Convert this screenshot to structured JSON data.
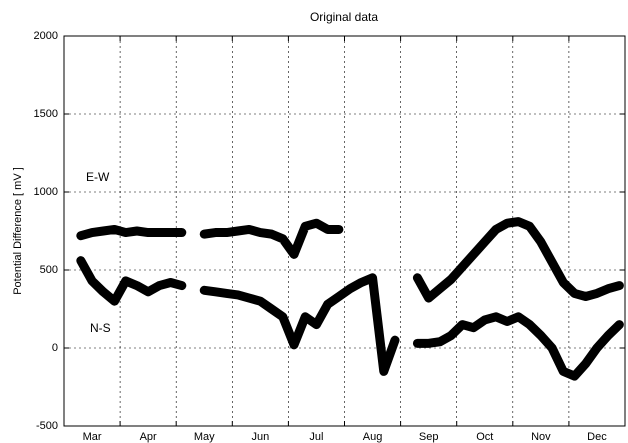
{
  "chart_data": {
    "type": "line",
    "title": "Original data",
    "y_label": "Potential Difference [ mV ]",
    "annotations": [
      "E-W",
      "N-S"
    ],
    "x": [
      0.3,
      0.5,
      0.7,
      0.9,
      1.1,
      1.3,
      1.5,
      1.7,
      1.9,
      2.1,
      2.3,
      2.5,
      2.7,
      2.9,
      3.1,
      3.3,
      3.5,
      3.7,
      3.9,
      4.1,
      4.3,
      4.5,
      4.7,
      4.9,
      5.1,
      5.3,
      5.5,
      5.7,
      5.9,
      6.1,
      6.3,
      6.5,
      6.7,
      6.9,
      7.1,
      7.3,
      7.5,
      7.7,
      7.9,
      8.1,
      8.3,
      8.5,
      8.7,
      8.9,
      9.1,
      9.3,
      9.5,
      9.7,
      9.9
    ],
    "series": [
      {
        "name": "E-W",
        "color": "#000000",
        "values": [
          720,
          740,
          750,
          760,
          740,
          750,
          740,
          740,
          740,
          740,
          null,
          730,
          740,
          740,
          750,
          760,
          740,
          730,
          700,
          600,
          780,
          800,
          760,
          760,
          null,
          null,
          null,
          null,
          null,
          null,
          450,
          320,
          380,
          440,
          520,
          600,
          680,
          760,
          800,
          810,
          780,
          680,
          550,
          420,
          350,
          330,
          350,
          380,
          400
        ]
      },
      {
        "name": "N-S",
        "color": "#000000",
        "values": [
          560,
          430,
          360,
          300,
          430,
          400,
          360,
          400,
          420,
          400,
          null,
          370,
          360,
          350,
          340,
          320,
          300,
          250,
          200,
          20,
          200,
          150,
          280,
          330,
          380,
          420,
          450,
          -150,
          50,
          null,
          30,
          30,
          40,
          80,
          150,
          130,
          180,
          200,
          170,
          200,
          150,
          80,
          0,
          -150,
          -180,
          -100,
          0,
          80,
          150
        ]
      }
    ],
    "xlim": [
      0,
      10
    ],
    "xticks": [
      {
        "value": 0.5,
        "label": "Mar"
      },
      {
        "value": 1.5,
        "label": "Apr"
      },
      {
        "value": 2.5,
        "label": "May"
      },
      {
        "value": 3.5,
        "label": "Jun"
      },
      {
        "value": 4.5,
        "label": "Jul"
      },
      {
        "value": 5.5,
        "label": "Aug"
      },
      {
        "value": 6.5,
        "label": "Sep"
      },
      {
        "value": 7.5,
        "label": "Oct"
      },
      {
        "value": 8.5,
        "label": "Nov"
      },
      {
        "value": 9.5,
        "label": "Dec"
      }
    ],
    "ylim": [
      -500,
      2000
    ],
    "yticks": [
      -500,
      0,
      500,
      1000,
      1500,
      2000
    ],
    "grid": true
  }
}
